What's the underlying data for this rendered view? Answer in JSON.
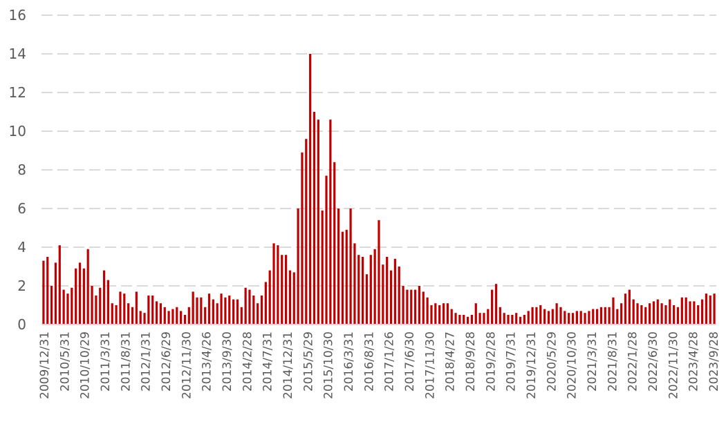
{
  "chart_data": {
    "type": "bar",
    "title": "",
    "xlabel": "",
    "ylabel": "",
    "ylim": [
      0,
      16
    ],
    "y_ticks": [
      0,
      2,
      4,
      6,
      8,
      10,
      12,
      14,
      16
    ],
    "grid": true,
    "legend": "none",
    "bar_color": "#c00000",
    "x_tick_labels": [
      "2009/12/31",
      "2010/5/31",
      "2010/10/29",
      "2011/3/31",
      "2011/8/31",
      "2012/1/31",
      "2012/6/29",
      "2012/11/30",
      "2013/4/26",
      "2013/9/30",
      "2014/2/28",
      "2014/7/31",
      "2014/12/31",
      "2015/5/29",
      "2015/10/30",
      "2016/3/31",
      "2016/8/31",
      "2017/1/26",
      "2017/6/30",
      "2017/11/30",
      "2018/4/27",
      "2018/9/28",
      "2019/2/28",
      "2019/7/31",
      "2019/12/31",
      "2020/5/29",
      "2020/10/30",
      "2021/3/31",
      "2021/8/31",
      "2022/1/28",
      "2022/6/30",
      "2022/11/30",
      "2023/4/28",
      "2023/9/28"
    ],
    "values": [
      3.3,
      3.5,
      2.0,
      3.2,
      4.1,
      1.8,
      1.6,
      1.9,
      2.9,
      3.2,
      2.9,
      3.9,
      2.0,
      1.5,
      1.9,
      2.8,
      2.3,
      1.1,
      1.0,
      1.7,
      1.6,
      1.1,
      0.9,
      1.7,
      0.7,
      0.6,
      1.5,
      1.5,
      1.2,
      1.1,
      0.9,
      0.7,
      0.8,
      0.9,
      0.7,
      0.5,
      0.9,
      1.7,
      1.4,
      1.4,
      0.9,
      1.6,
      1.3,
      1.1,
      1.6,
      1.4,
      1.5,
      1.3,
      1.3,
      0.9,
      1.9,
      1.8,
      1.5,
      1.1,
      1.5,
      2.2,
      2.8,
      4.2,
      4.1,
      3.6,
      3.6,
      2.8,
      2.7,
      6.0,
      8.9,
      9.6,
      14.0,
      11.0,
      10.6,
      5.9,
      7.7,
      10.6,
      8.4,
      6.0,
      4.8,
      4.9,
      6.0,
      4.2,
      3.6,
      3.5,
      2.6,
      3.6,
      3.9,
      5.4,
      3.1,
      3.5,
      2.8,
      3.4,
      3.0,
      2.0,
      1.8,
      1.8,
      1.8,
      2.0,
      1.7,
      1.4,
      1.0,
      1.1,
      1.0,
      1.1,
      1.1,
      0.8,
      0.6,
      0.5,
      0.5,
      0.4,
      0.5,
      1.1,
      0.6,
      0.6,
      0.8,
      1.8,
      2.1,
      0.9,
      0.6,
      0.5,
      0.5,
      0.6,
      0.4,
      0.5,
      0.7,
      0.9,
      0.9,
      1.0,
      0.8,
      0.7,
      0.8,
      1.1,
      0.9,
      0.7,
      0.6,
      0.6,
      0.7,
      0.7,
      0.6,
      0.7,
      0.8,
      0.8,
      0.9,
      0.9,
      0.9,
      1.4,
      0.8,
      1.1,
      1.6,
      1.8,
      1.3,
      1.1,
      1.0,
      0.9,
      1.1,
      1.2,
      1.3,
      1.1,
      1.0,
      1.3,
      1.0,
      0.9,
      1.4,
      1.4,
      1.2,
      1.2,
      1.0,
      1.3,
      1.6,
      1.5,
      1.6
    ]
  }
}
